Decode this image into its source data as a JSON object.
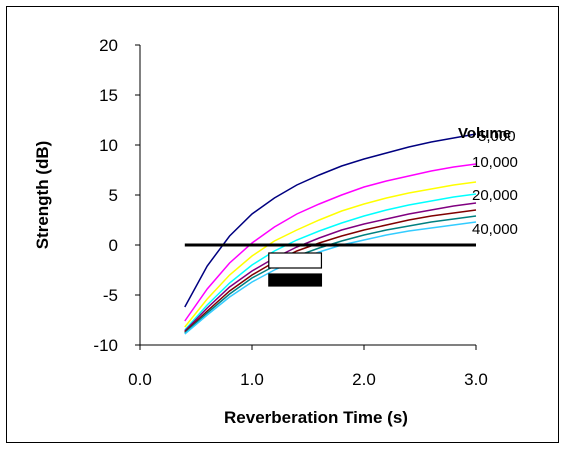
{
  "chart_data": {
    "type": "line",
    "xlabel": "Reverberation Time (s)",
    "ylabel": "Strength (dB)",
    "xlim": [
      0.0,
      3.0
    ],
    "ylim": [
      -10,
      20
    ],
    "xticks": [
      "0.0",
      "1.0",
      "2.0",
      "3.0"
    ],
    "yticks": [
      "20",
      "15",
      "10",
      "5",
      "0",
      "-5",
      "-10"
    ],
    "legend_title": "Volume",
    "grid": false,
    "x": [
      0.4,
      0.6,
      0.8,
      1.0,
      1.2,
      1.4,
      1.6,
      1.8,
      2.0,
      2.2,
      2.4,
      2.6,
      2.8,
      3.0
    ],
    "series": [
      {
        "name": "5,000",
        "color": "#000080",
        "values": [
          -6.2,
          -2.1,
          0.9,
          3.1,
          4.7,
          6.0,
          7.0,
          7.9,
          8.6,
          9.2,
          9.8,
          10.3,
          10.7,
          11.1
        ]
      },
      {
        "name": "",
        "color": "#ff00ff",
        "values": [
          -7.6,
          -4.4,
          -1.8,
          0.2,
          1.8,
          3.1,
          4.1,
          5.0,
          5.8,
          6.4,
          6.9,
          7.4,
          7.8,
          8.1
        ]
      },
      {
        "name": "10,000",
        "color": "#ffff00",
        "values": [
          -8.2,
          -5.4,
          -3.0,
          -1.1,
          0.4,
          1.5,
          2.5,
          3.4,
          4.1,
          4.7,
          5.2,
          5.6,
          6.0,
          6.3
        ]
      },
      {
        "name": "",
        "color": "#00ffff",
        "values": [
          -8.5,
          -6.0,
          -3.8,
          -2.0,
          -0.6,
          0.5,
          1.4,
          2.2,
          2.9,
          3.5,
          4.0,
          4.4,
          4.8,
          5.1
        ]
      },
      {
        "name": "20,000",
        "color": "#800080",
        "values": [
          -8.6,
          -6.3,
          -4.2,
          -2.6,
          -1.3,
          -0.2,
          0.7,
          1.5,
          2.1,
          2.6,
          3.1,
          3.5,
          3.9,
          4.2
        ]
      },
      {
        "name": "",
        "color": "#800000",
        "values": [
          -8.7,
          -6.6,
          -4.6,
          -3.0,
          -1.7,
          -0.6,
          0.2,
          0.9,
          1.5,
          2.0,
          2.5,
          2.9,
          3.2,
          3.5
        ]
      },
      {
        "name": "40,000",
        "color": "#008080",
        "values": [
          -8.8,
          -6.8,
          -4.9,
          -3.3,
          -2.1,
          -1.1,
          -0.3,
          0.4,
          1.0,
          1.5,
          1.9,
          2.3,
          2.6,
          2.9
        ]
      },
      {
        "name": "",
        "color": "#33ccff",
        "values": [
          -8.9,
          -7.0,
          -5.2,
          -3.7,
          -2.5,
          -1.5,
          -0.7,
          0.0,
          0.5,
          1.0,
          1.4,
          1.7,
          2.0,
          2.3
        ]
      }
    ],
    "reference_line": {
      "y": 0,
      "x": [
        0.4,
        3.0
      ],
      "color": "#000000"
    },
    "boxes": [
      {
        "name": "open-range",
        "x": [
          1.15,
          1.62
        ],
        "y": [
          -2.3,
          -0.8
        ],
        "fill": "#ffffff",
        "stroke": "#000000"
      },
      {
        "name": "filled-range",
        "x": [
          1.15,
          1.62
        ],
        "y": [
          -4.1,
          -2.9
        ],
        "fill": "#000000",
        "stroke": "#000000"
      }
    ]
  }
}
